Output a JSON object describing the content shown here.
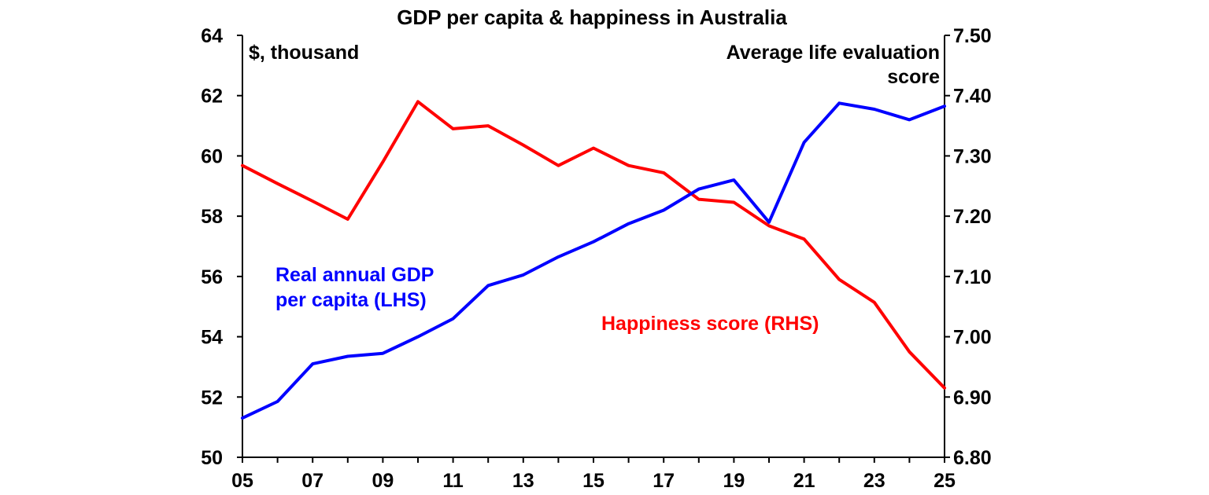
{
  "chart_data": {
    "type": "line",
    "title": "GDP per capita & happiness in Australia",
    "x_tick_labels": [
      "05",
      "07",
      "09",
      "11",
      "13",
      "15",
      "17",
      "19",
      "21",
      "23",
      "25"
    ],
    "x": [
      2005,
      2006,
      2007,
      2008,
      2009,
      2010,
      2011,
      2012,
      2013,
      2014,
      2015,
      2016,
      2017,
      2018,
      2019,
      2020,
      2021,
      2022,
      2023,
      2024,
      2025
    ],
    "xlim": [
      2005,
      2025
    ],
    "y_left": {
      "unit_label": "$, thousand",
      "ylim": [
        50,
        64
      ],
      "tick_labels": [
        "50",
        "52",
        "54",
        "56",
        "58",
        "60",
        "62",
        "64"
      ]
    },
    "y_right": {
      "unit_label_lines": [
        "Average life evaluation",
        "score"
      ],
      "ylim": [
        6.8,
        7.5
      ],
      "tick_labels": [
        "6.80",
        "6.90",
        "7.00",
        "7.10",
        "7.20",
        "7.30",
        "7.40",
        "7.50"
      ]
    },
    "grid": false,
    "series": [
      {
        "name_lines": [
          "Real annual GDP",
          "per capita (LHS)"
        ],
        "axis": "left",
        "color": "#0000ff",
        "values": [
          51.3,
          51.85,
          53.1,
          53.35,
          53.45,
          54.0,
          54.6,
          55.7,
          56.05,
          56.65,
          57.15,
          57.75,
          58.2,
          58.9,
          59.2,
          57.8,
          60.45,
          61.75,
          61.55,
          61.2,
          61.65
        ]
      },
      {
        "name_lines": [
          "Happiness score (RHS)"
        ],
        "axis": "right",
        "color": "#ff0000",
        "values": [
          7.284,
          7.254,
          7.225,
          7.195,
          7.29,
          7.39,
          7.345,
          7.35,
          7.318,
          7.284,
          7.313,
          7.284,
          7.272,
          7.228,
          7.223,
          7.184,
          7.162,
          7.095,
          7.057,
          6.975,
          6.915
        ]
      }
    ]
  }
}
